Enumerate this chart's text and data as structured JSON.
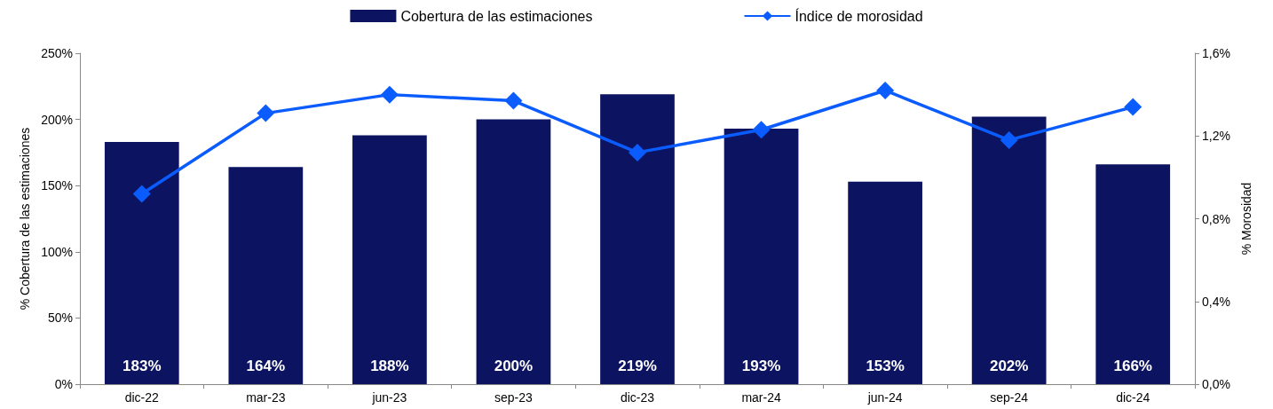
{
  "chart_data": {
    "type": "bar",
    "categories": [
      "dic-22",
      "mar-23",
      "jun-23",
      "sep-23",
      "dic-23",
      "mar-24",
      "jun-24",
      "sep-24",
      "dic-24"
    ],
    "ylabel": "% Cobertura de las estimaciones",
    "y2label": "% Morosidad",
    "ylim": [
      0,
      250
    ],
    "yticks": [
      {
        "value": 0,
        "label": "0%"
      },
      {
        "value": 50,
        "label": "50%"
      },
      {
        "value": 100,
        "label": "100%"
      },
      {
        "value": 150,
        "label": "150%"
      },
      {
        "value": 200,
        "label": "200%"
      },
      {
        "value": 250,
        "label": "250%"
      }
    ],
    "y2lim": [
      0,
      1.6
    ],
    "y2ticks": [
      {
        "value": 0,
        "label": "0,0%"
      },
      {
        "value": 0.4,
        "label": "0,4%"
      },
      {
        "value": 0.8,
        "label": "0,8%"
      },
      {
        "value": 1.2,
        "label": "1,2%"
      },
      {
        "value": 1.6,
        "label": "1,6%"
      }
    ],
    "series": [
      {
        "name": "Cobertura de las estimaciones",
        "color": "#0c1461",
        "values": [
          183,
          164,
          188,
          200,
          219,
          193,
          153,
          202,
          166
        ],
        "value_labels": [
          "183%",
          "164%",
          "188%",
          "200%",
          "219%",
          "193%",
          "153%",
          "202%",
          "166%"
        ]
      },
      {
        "name": "Índice de morosidad",
        "type": "line",
        "axis": "y2",
        "color": "#0a5cff",
        "marker": "diamond",
        "line_style": "solid",
        "values": [
          0.92,
          1.31,
          1.4,
          1.37,
          1.12,
          1.23,
          1.42,
          1.18,
          1.34
        ]
      }
    ],
    "legend": "top",
    "grid": false
  }
}
